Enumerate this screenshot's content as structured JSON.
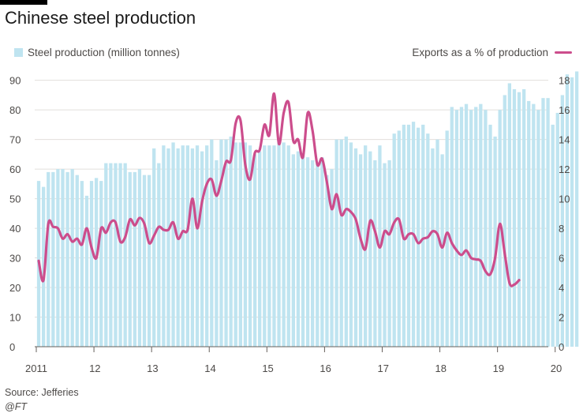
{
  "header": {
    "title": "Chinese steel production"
  },
  "legend": {
    "bars_label": "Steel production (million tonnes)",
    "line_label": "Exports as a % of production"
  },
  "footer": {
    "source": "Source: Jefferies",
    "credit": "@FT"
  },
  "colors": {
    "bars": "#bfe4f0",
    "line": "#cc4d8c",
    "grid": "#e2dfdc",
    "axis": "#4d4a48"
  },
  "chart_data": {
    "type": "bar",
    "title": "Chinese steel production",
    "x_tick_labels": [
      "2011",
      "12",
      "13",
      "14",
      "15",
      "16",
      "17",
      "18",
      "19",
      "20"
    ],
    "y_left": {
      "ticks": [
        0,
        10,
        20,
        30,
        40,
        50,
        60,
        70,
        80,
        90
      ],
      "range": [
        0,
        95
      ]
    },
    "y_right": {
      "ticks": [
        0,
        2,
        4,
        6,
        8,
        10,
        12,
        14,
        16,
        18
      ],
      "range": [
        0,
        19
      ]
    },
    "series": [
      {
        "name": "Steel production (million tonnes)",
        "type": "bar",
        "axis": "left",
        "x_start": "2011-01",
        "frequency": "monthly",
        "values": [
          56,
          54,
          59,
          59,
          60,
          60,
          59,
          60,
          58,
          56,
          51,
          56,
          57,
          56,
          62,
          62,
          62,
          62,
          62,
          59,
          59,
          60,
          58,
          58,
          67,
          62,
          68,
          67,
          69,
          67,
          68,
          68,
          67,
          68,
          66,
          68,
          70,
          63,
          70,
          70,
          71,
          69,
          69,
          69,
          68,
          65,
          66,
          68,
          68,
          68,
          69,
          69,
          68,
          65,
          66,
          65,
          64,
          63,
          62,
          64,
          58,
          60,
          70,
          70,
          71,
          69,
          67,
          65,
          68,
          66,
          63,
          68,
          62,
          63,
          72,
          73,
          75,
          75,
          76,
          74,
          75,
          72,
          67,
          70,
          65,
          73,
          81,
          80,
          81,
          82,
          80,
          81,
          82,
          80,
          75,
          71,
          80,
          85,
          89,
          87,
          86,
          87,
          83,
          82,
          80,
          84,
          84,
          75,
          79,
          85,
          92,
          91,
          93
        ]
      },
      {
        "name": "Exports as a % of production",
        "type": "line",
        "axis": "right",
        "x_start": "2011-01",
        "frequency": "monthly",
        "values": [
          5.8,
          4.5,
          8.3,
          8.1,
          8.0,
          7.3,
          7.6,
          7.1,
          7.3,
          6.9,
          8.0,
          6.7,
          6.0,
          8.0,
          7.7,
          8.4,
          8.4,
          7.1,
          7.4,
          8.6,
          8.2,
          8.7,
          8.3,
          7.0,
          7.5,
          8.1,
          7.9,
          7.9,
          8.4,
          7.3,
          7.8,
          7.9,
          10.0,
          8.0,
          9.8,
          11.0,
          11.3,
          10.2,
          11.2,
          12.5,
          12.6,
          15.1,
          15.3,
          12.3,
          11.3,
          13.1,
          13.3,
          15.0,
          14.3,
          17.1,
          13.7,
          15.8,
          16.5,
          13.9,
          14.0,
          12.8,
          15.8,
          14.6,
          12.3,
          12.7,
          11.1,
          9.3,
          10.3,
          8.9,
          9.3,
          9.1,
          8.6,
          7.3,
          6.6,
          8.5,
          7.8,
          6.7,
          7.8,
          7.6,
          8.4,
          8.6,
          7.3,
          7.6,
          7.6,
          7.0,
          7.3,
          7.4,
          7.8,
          7.6,
          6.7,
          7.7,
          7.0,
          6.5,
          6.2,
          6.5,
          6.0,
          5.9,
          5.8,
          5.1,
          4.9,
          6.0,
          8.3,
          6.3,
          4.3,
          4.2,
          4.5
        ]
      }
    ]
  }
}
